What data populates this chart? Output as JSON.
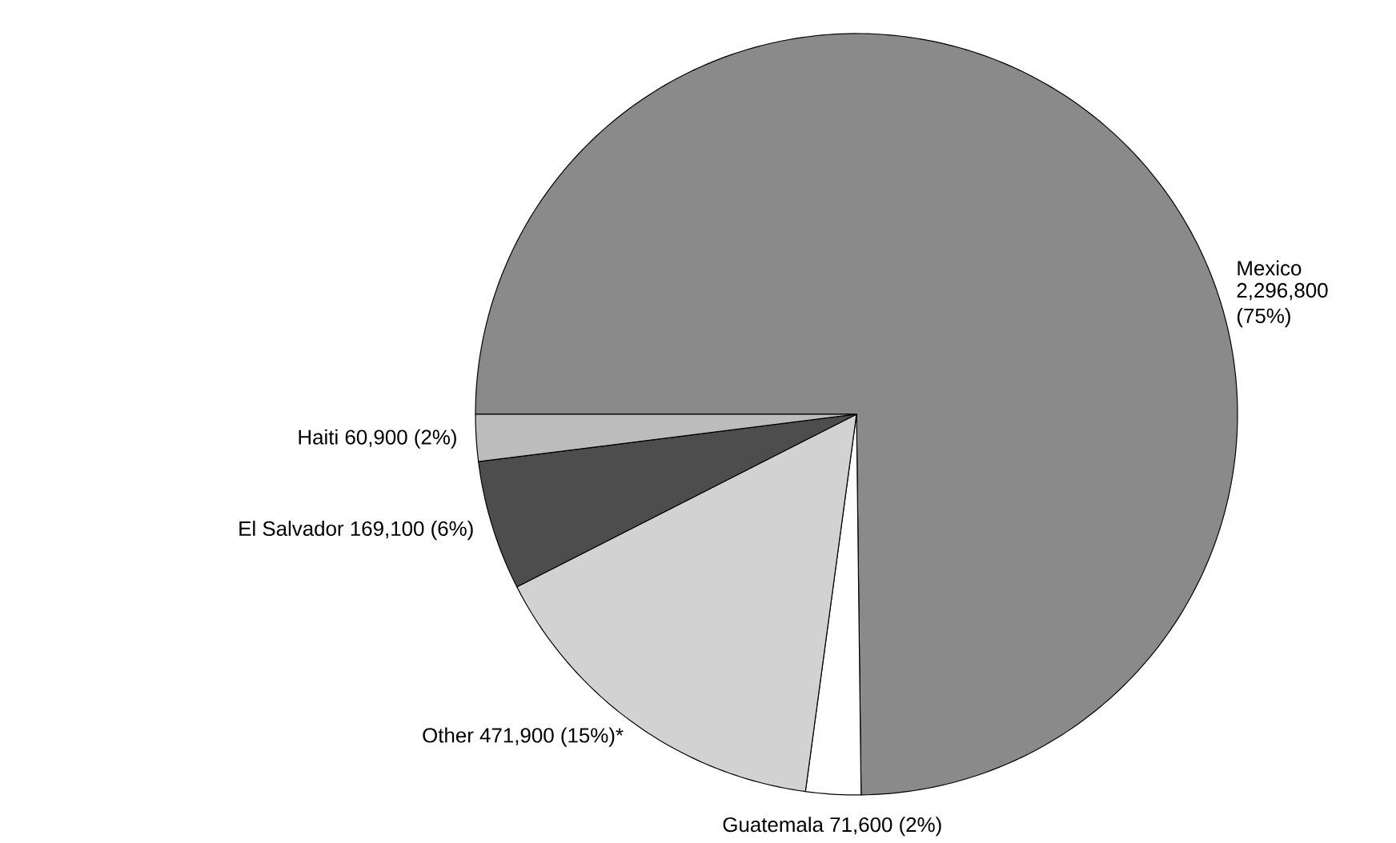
{
  "chart_data": {
    "type": "pie",
    "categories": [
      "Mexico",
      "Guatemala",
      "Other",
      "El Salvador",
      "Haiti"
    ],
    "values": [
      2296800,
      71600,
      471900,
      169100,
      60900
    ],
    "value_labels": [
      "2,296,800 (75%)",
      "71,600 (2%)",
      "471,900 (15%)*",
      "169,100 (6%)",
      "60,900 (2%)"
    ],
    "colors": [
      "#8a8a8a",
      "#ffffff",
      "#d2d2d2",
      "#4d4d4d",
      "#bcbcbc"
    ]
  }
}
